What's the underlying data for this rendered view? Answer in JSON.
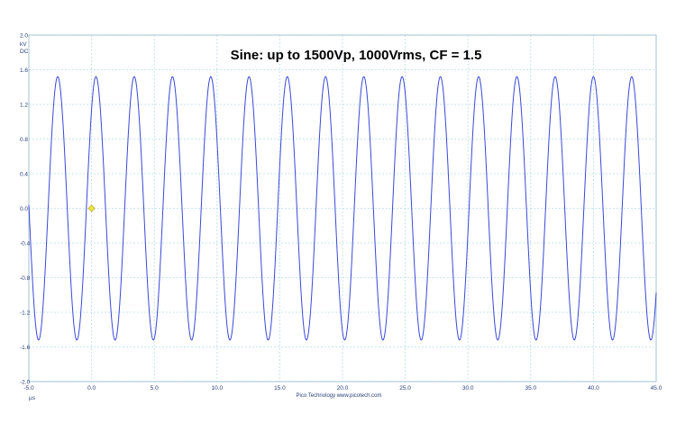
{
  "colors": {
    "trace": "#3a48d8",
    "grid": "#b9dde8",
    "frame": "#8fb7c8",
    "marker": "#f2e640",
    "marker_stroke": "#a89a10"
  },
  "footer": "Pico Technology  www.picotech.com",
  "chart_data": {
    "type": "line",
    "title": "Sine: up to 1500Vp, 1000Vrms, CF = 1.5",
    "y_units": [
      "kV",
      "DC"
    ],
    "x_unit": "µs",
    "xlim": [
      -5.0,
      45.0
    ],
    "ylim": [
      -2.0,
      2.0
    ],
    "x_ticks": [
      "-5.0",
      "0.0",
      "5.0",
      "10.0",
      "15.0",
      "20.0",
      "25.0",
      "30.0",
      "35.0",
      "40.0",
      "45.0"
    ],
    "y_ticks": [
      "2.0",
      "1.6",
      "1.2",
      "0.8",
      "0.4",
      "0.0",
      "-0.4",
      "-0.8",
      "-1.2",
      "-1.6",
      "-2.0"
    ],
    "grid": true,
    "series": [
      {
        "amplitude_kV": 1.52,
        "period_us": 3.05,
        "first_peak_us": -2.7,
        "x_range": [
          -5.0,
          45.0
        ]
      }
    ],
    "trigger_marker": {
      "x": 0.0,
      "y": 0.0
    }
  }
}
